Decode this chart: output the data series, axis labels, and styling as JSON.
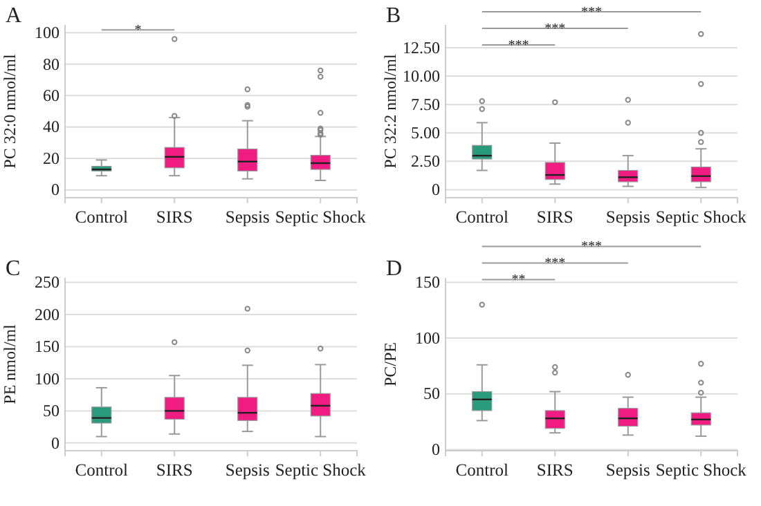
{
  "chart_data": [
    {
      "type": "box",
      "title": "A",
      "ylabel": "PC 32:0 nmol/ml",
      "categories": [
        "Control",
        "SIRS",
        "Sepsis",
        "Septic Shock"
      ],
      "colors": [
        "#2a9a7c",
        "#f01c82",
        "#f01c82",
        "#f01c82"
      ],
      "boxes": [
        {
          "low": 9,
          "q1": 12,
          "median": 13,
          "q3": 15,
          "high": 19
        },
        {
          "low": 9,
          "q1": 14,
          "median": 21,
          "q3": 27,
          "high": 46,
          "outliers": [
            47,
            96
          ]
        },
        {
          "low": 7,
          "q1": 12,
          "median": 18,
          "q3": 26,
          "high": 44,
          "outliers": [
            53,
            54,
            64
          ]
        },
        {
          "low": 6,
          "q1": 13,
          "median": 17,
          "q3": 22,
          "high": 34,
          "outliers": [
            35,
            36,
            38,
            39,
            49,
            72,
            76
          ]
        }
      ],
      "ylim": [
        -5,
        105
      ],
      "yticks": [
        0,
        20,
        40,
        60,
        80,
        100
      ],
      "grid": "y",
      "marker": "circle",
      "annotations": [
        "*"
      ]
    },
    {
      "type": "box",
      "title": "B",
      "ylabel": "PC 32:2 nmol/ml",
      "categories": [
        "Control",
        "SIRS",
        "Sepsis",
        "Septic Shock"
      ],
      "colors": [
        "#2a9a7c",
        "#f01c82",
        "#f01c82",
        "#f01c82"
      ],
      "boxes": [
        {
          "low": 1.7,
          "q1": 2.7,
          "median": 3.0,
          "q3": 3.9,
          "high": 5.9,
          "outliers": [
            7.1,
            7.8
          ]
        },
        {
          "low": 0.5,
          "q1": 0.9,
          "median": 1.3,
          "q3": 2.4,
          "high": 4.1,
          "outliers": [
            7.7
          ]
        },
        {
          "low": 0.3,
          "q1": 0.7,
          "median": 1.1,
          "q3": 1.7,
          "high": 3.0,
          "outliers": [
            5.9,
            7.9
          ]
        },
        {
          "low": 0.2,
          "q1": 0.7,
          "median": 1.2,
          "q3": 2.0,
          "high": 3.6,
          "outliers": [
            4.2,
            5.0,
            9.3,
            13.7
          ]
        }
      ],
      "ylim": [
        -0.7,
        14.5
      ],
      "yticks": [
        0,
        {
          "value": 2.5,
          "label": "2.50"
        },
        {
          "value": 5,
          "label": "5.00"
        },
        {
          "value": 7.5,
          "label": "7.50"
        },
        {
          "value": 10,
          "label": "10.00"
        },
        {
          "value": 12.5,
          "label": "12.50"
        }
      ],
      "grid": "y",
      "marker": "circle",
      "annotations": [
        "***",
        "***",
        "***"
      ]
    },
    {
      "type": "box",
      "title": "C",
      "ylabel": "PE nmol/ml",
      "categories": [
        "Control",
        "SIRS",
        "Sepsis",
        "Septic Shock"
      ],
      "colors": [
        "#2a9a7c",
        "#f01c82",
        "#f01c82",
        "#f01c82"
      ],
      "boxes": [
        {
          "low": 10,
          "q1": 31,
          "median": 39,
          "q3": 56,
          "high": 86
        },
        {
          "low": 14,
          "q1": 37,
          "median": 50,
          "q3": 71,
          "high": 105,
          "outliers": [
            157
          ]
        },
        {
          "low": 18,
          "q1": 35,
          "median": 47,
          "q3": 71,
          "high": 121,
          "outliers": [
            144,
            209
          ]
        },
        {
          "low": 10,
          "q1": 42,
          "median": 58,
          "q3": 77,
          "high": 122,
          "outliers": [
            147
          ]
        }
      ],
      "ylim": [
        -12,
        257
      ],
      "yticks": [
        0,
        50,
        100,
        150,
        200,
        250
      ],
      "grid": "y",
      "marker": "circle"
    },
    {
      "type": "box",
      "title": "D",
      "ylabel": "PC/PE",
      "categories": [
        "Control",
        "SIRS",
        "Sepsis",
        "Septic Shock"
      ],
      "colors": [
        "#2a9a7c",
        "#f01c82",
        "#f01c82",
        "#f01c82"
      ],
      "boxes": [
        {
          "low": 26,
          "q1": 35,
          "median": 45,
          "q3": 52,
          "high": 76,
          "outliers": [
            130
          ]
        },
        {
          "low": 15,
          "q1": 19,
          "median": 28,
          "q3": 35,
          "high": 52,
          "outliers": [
            69,
            74
          ]
        },
        {
          "low": 13,
          "q1": 21,
          "median": 28,
          "q3": 37,
          "high": 47,
          "outliers": [
            67
          ]
        },
        {
          "low": 12,
          "q1": 22,
          "median": 27,
          "q3": 33,
          "high": 47,
          "outliers": [
            51,
            60,
            77
          ]
        }
      ],
      "ylim": [
        -1,
        154
      ],
      "yticks": [
        0,
        50,
        100,
        150
      ],
      "grid": "y",
      "marker": "circle",
      "annotations": [
        "**",
        "***",
        "***"
      ]
    }
  ]
}
